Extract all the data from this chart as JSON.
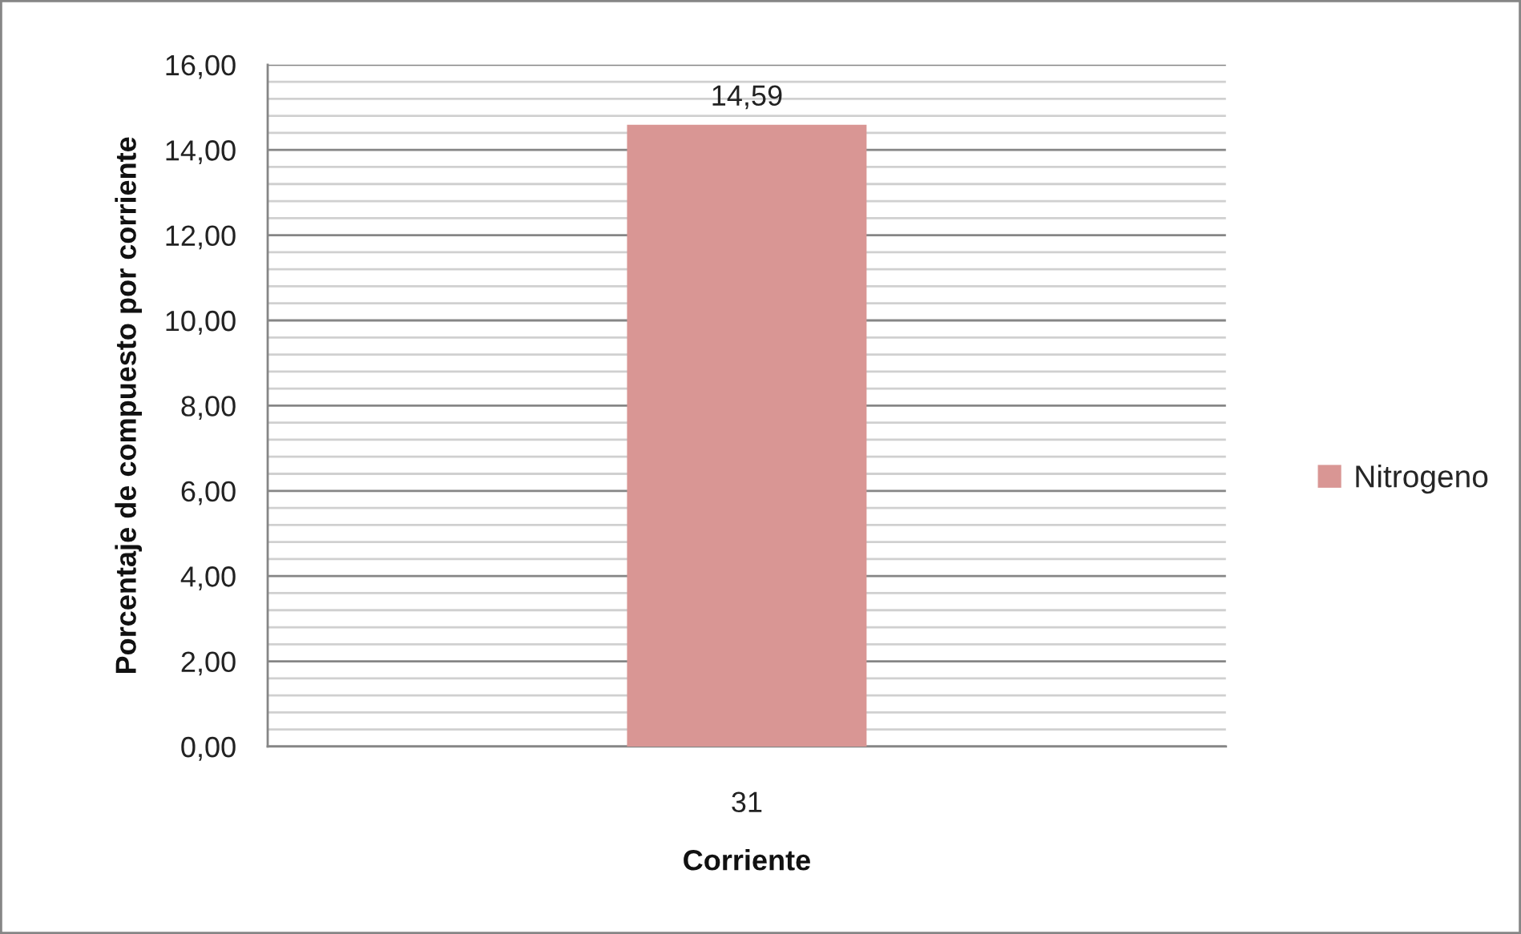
{
  "chart_data": {
    "type": "bar",
    "xlabel": "Corriente",
    "ylabel": "Porcentaje de compuesto por corriente",
    "categories": [
      "31"
    ],
    "series": [
      {
        "name": "Nitrogeno",
        "color": "#d99694",
        "values": [
          14.59
        ],
        "value_labels": [
          "14,59"
        ]
      }
    ],
    "ylim": [
      0,
      16
    ],
    "yticks": [
      {
        "value": 0,
        "label": "0,00"
      },
      {
        "value": 0.4,
        "label": null
      },
      {
        "value": 0.8,
        "label": null
      },
      {
        "value": 1.2,
        "label": null
      },
      {
        "value": 1.6,
        "label": null
      },
      {
        "value": 2,
        "label": "2,00"
      },
      {
        "value": 2.4,
        "label": null
      },
      {
        "value": 2.8,
        "label": null
      },
      {
        "value": 3.2,
        "label": null
      },
      {
        "value": 3.6,
        "label": null
      },
      {
        "value": 4,
        "label": "4,00"
      },
      {
        "value": 4.4,
        "label": null
      },
      {
        "value": 4.8,
        "label": null
      },
      {
        "value": 5.2,
        "label": null
      },
      {
        "value": 5.6,
        "label": null
      },
      {
        "value": 6,
        "label": "6,00"
      },
      {
        "value": 6.4,
        "label": null
      },
      {
        "value": 6.8,
        "label": null
      },
      {
        "value": 7.2,
        "label": null
      },
      {
        "value": 7.6,
        "label": null
      },
      {
        "value": 8,
        "label": "8,00"
      },
      {
        "value": 8.4,
        "label": null
      },
      {
        "value": 8.8,
        "label": null
      },
      {
        "value": 9.2,
        "label": null
      },
      {
        "value": 9.6,
        "label": null
      },
      {
        "value": 10,
        "label": "10,00"
      },
      {
        "value": 10.4,
        "label": null
      },
      {
        "value": 10.8,
        "label": null
      },
      {
        "value": 11.2,
        "label": null
      },
      {
        "value": 11.6,
        "label": null
      },
      {
        "value": 12,
        "label": "12,00"
      },
      {
        "value": 12.4,
        "label": null
      },
      {
        "value": 12.8,
        "label": null
      },
      {
        "value": 13.2,
        "label": null
      },
      {
        "value": 13.6,
        "label": null
      },
      {
        "value": 14,
        "label": "14,00"
      },
      {
        "value": 14.4,
        "label": null
      },
      {
        "value": 14.8,
        "label": null
      },
      {
        "value": 15.2,
        "label": null
      },
      {
        "value": 15.6,
        "label": null
      },
      {
        "value": 16,
        "label": "16,00"
      }
    ],
    "grid": "y",
    "legend": "right"
  }
}
